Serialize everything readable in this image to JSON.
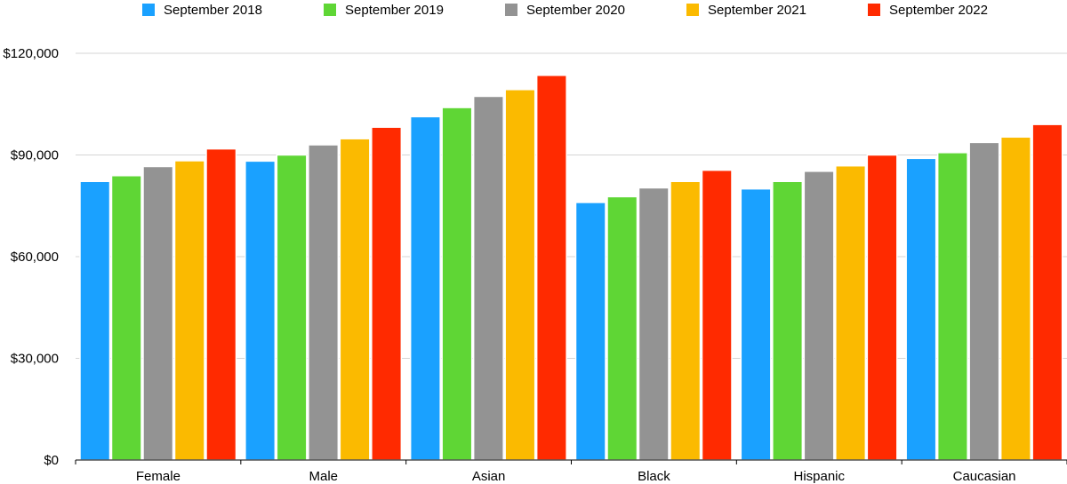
{
  "chart_data": {
    "type": "bar",
    "categories": [
      "Female",
      "Male",
      "Asian",
      "Black",
      "Hispanic",
      "Caucasian"
    ],
    "series": [
      {
        "name": "September 2018",
        "color": "#1aa1ff",
        "values": [
          82200,
          88200,
          101300,
          76000,
          80000,
          89000
        ]
      },
      {
        "name": "September 2019",
        "color": "#5fd635",
        "values": [
          83900,
          90000,
          104000,
          77700,
          82200,
          90700
        ]
      },
      {
        "name": "September 2020",
        "color": "#939393",
        "values": [
          86600,
          93000,
          107300,
          80300,
          85200,
          93700
        ]
      },
      {
        "name": "September 2021",
        "color": "#fbba00",
        "values": [
          88300,
          94800,
          109300,
          82200,
          86800,
          95300
        ]
      },
      {
        "name": "September 2022",
        "color": "#ff2a00",
        "values": [
          91800,
          98200,
          113500,
          85500,
          90000,
          99000
        ]
      }
    ],
    "ylim": [
      0,
      120000
    ],
    "yticks": [
      {
        "value": 0,
        "label": "$0"
      },
      {
        "value": 30000,
        "label": "$30,000"
      },
      {
        "value": 60000,
        "label": "$60,000"
      },
      {
        "value": 90000,
        "label": "$90,000"
      },
      {
        "value": 120000,
        "label": "$120,000"
      }
    ],
    "title": "",
    "xlabel": "",
    "ylabel": "",
    "grid": true,
    "legend_position": "top"
  }
}
